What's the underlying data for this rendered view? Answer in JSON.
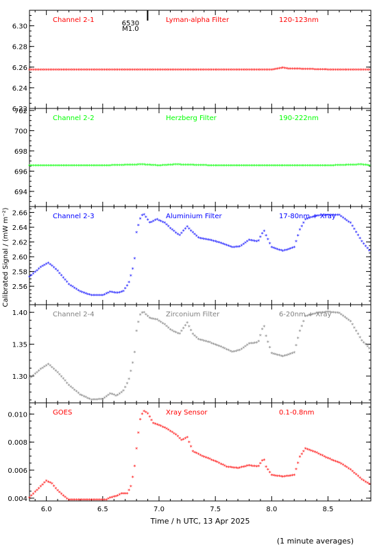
{
  "xaxis": {
    "label": "Time / h UTC, 13 Apr 2025",
    "xlim": [
      5.85,
      8.88
    ],
    "ticks": [
      6.0,
      6.5,
      7.0,
      7.5,
      8.0,
      8.5
    ],
    "tick_labels": [
      "6.0",
      "6.5",
      "7.0",
      "7.5",
      "8.0",
      "8.5"
    ]
  },
  "ylabel": "Calibrated Signal / (mW m⁻²)",
  "footnote": "(1 minute averages)",
  "flare_marker": {
    "x": 6.85,
    "number": "6530",
    "class": "M1.0"
  },
  "chart_data": [
    {
      "type": "scatter",
      "channel": "Channel 2-1",
      "filter": "Lyman-alpha Filter",
      "band": "120-123nm",
      "color": "#ff0000",
      "ylim": [
        6.22,
        6.315
      ],
      "yticks": [
        6.22,
        6.24,
        6.26,
        6.28,
        6.3
      ],
      "ytick_labels": [
        "6.22",
        "6.24",
        "6.26",
        "6.28",
        "6.30"
      ],
      "x": [
        5.85,
        6.0,
        6.5,
        7.0,
        7.5,
        8.0,
        8.05,
        8.1,
        8.15,
        8.5,
        8.88
      ],
      "y": [
        6.257,
        6.257,
        6.257,
        6.257,
        6.257,
        6.257,
        6.258,
        6.259,
        6.258,
        6.257,
        6.257
      ]
    },
    {
      "type": "scatter",
      "channel": "Channel 2-2",
      "filter": "Herzberg Filter",
      "band": "190-222nm",
      "color": "#00ff00",
      "ylim": [
        692.5,
        702.2
      ],
      "yticks": [
        694,
        696,
        698,
        700,
        702
      ],
      "ytick_labels": [
        "694",
        "696",
        "698",
        "700",
        "702"
      ],
      "x": [
        5.85,
        6.5,
        6.85,
        7.0,
        7.15,
        7.5,
        8.0,
        8.5,
        8.8,
        8.88
      ],
      "y": [
        696.5,
        696.5,
        696.6,
        696.5,
        696.6,
        696.5,
        696.5,
        696.5,
        696.6,
        696.5
      ]
    },
    {
      "type": "scatter",
      "channel": "Channel 2-3",
      "filter": "Aluminium Filter",
      "band": "17-80nm + Xray",
      "color": "#0000ff",
      "ylim": [
        2.535,
        2.668
      ],
      "yticks": [
        2.56,
        2.58,
        2.6,
        2.62,
        2.64,
        2.66
      ],
      "ytick_labels": [
        "2.56",
        "2.58",
        "2.60",
        "2.62",
        "2.64",
        "2.66"
      ],
      "x": [
        5.85,
        5.95,
        6.02,
        6.1,
        6.2,
        6.3,
        6.4,
        6.5,
        6.57,
        6.62,
        6.68,
        6.73,
        6.78,
        6.8,
        6.83,
        6.86,
        6.92,
        6.98,
        7.05,
        7.1,
        7.18,
        7.25,
        7.3,
        7.35,
        7.45,
        7.55,
        7.65,
        7.72,
        7.8,
        7.88,
        7.93,
        7.95,
        8.0,
        8.1,
        8.2,
        8.25,
        8.3,
        8.4,
        8.5,
        8.6,
        8.7,
        8.8,
        8.88
      ],
      "y": [
        2.572,
        2.585,
        2.591,
        2.58,
        2.562,
        2.552,
        2.547,
        2.547,
        2.552,
        2.55,
        2.552,
        2.563,
        2.59,
        2.632,
        2.65,
        2.658,
        2.645,
        2.65,
        2.645,
        2.638,
        2.628,
        2.64,
        2.632,
        2.625,
        2.622,
        2.618,
        2.612,
        2.613,
        2.622,
        2.62,
        2.635,
        2.628,
        2.612,
        2.607,
        2.612,
        2.636,
        2.65,
        2.655,
        2.656,
        2.656,
        2.645,
        2.62,
        2.605
      ]
    },
    {
      "type": "scatter",
      "channel": "Channel 2-4",
      "filter": "Zirconium Filter",
      "band": "6-20nm + Xray",
      "color": "#808080",
      "ylim": [
        1.258,
        1.412
      ],
      "yticks": [
        1.3,
        1.35,
        1.4
      ],
      "ytick_labels": [
        "1.30",
        "1.35",
        "1.40"
      ],
      "x": [
        5.85,
        5.95,
        6.02,
        6.1,
        6.2,
        6.3,
        6.4,
        6.5,
        6.57,
        6.62,
        6.68,
        6.73,
        6.78,
        6.8,
        6.83,
        6.86,
        6.92,
        6.98,
        7.05,
        7.1,
        7.18,
        7.25,
        7.3,
        7.35,
        7.45,
        7.55,
        7.65,
        7.72,
        7.8,
        7.88,
        7.93,
        7.95,
        8.0,
        8.1,
        8.2,
        8.25,
        8.3,
        8.4,
        8.5,
        8.6,
        8.7,
        8.8,
        8.88
      ],
      "y": [
        1.295,
        1.31,
        1.318,
        1.305,
        1.285,
        1.27,
        1.262,
        1.263,
        1.272,
        1.268,
        1.275,
        1.292,
        1.33,
        1.37,
        1.395,
        1.4,
        1.39,
        1.388,
        1.38,
        1.372,
        1.365,
        1.383,
        1.365,
        1.357,
        1.352,
        1.345,
        1.337,
        1.34,
        1.35,
        1.352,
        1.38,
        1.362,
        1.335,
        1.33,
        1.336,
        1.37,
        1.393,
        1.398,
        1.4,
        1.398,
        1.385,
        1.355,
        1.34
      ]
    },
    {
      "type": "scatter",
      "channel": "GOES",
      "filter": "Xray Sensor",
      "band": "0.1-0.8nm",
      "color": "#ff0000",
      "ylim": [
        0.0038,
        0.0108
      ],
      "yticks": [
        0.004,
        0.006,
        0.008,
        0.01
      ],
      "ytick_labels": [
        "0.004",
        "0.006",
        "0.008",
        "0.010"
      ],
      "x": [
        5.85,
        5.95,
        6.0,
        6.05,
        6.1,
        6.2,
        6.3,
        6.4,
        6.5,
        6.57,
        6.62,
        6.67,
        6.72,
        6.75,
        6.78,
        6.8,
        6.83,
        6.86,
        6.9,
        6.95,
        7.05,
        7.15,
        7.2,
        7.25,
        7.3,
        7.4,
        7.5,
        7.6,
        7.7,
        7.8,
        7.88,
        7.93,
        7.95,
        8.0,
        8.1,
        8.2,
        8.25,
        8.3,
        8.4,
        8.5,
        8.6,
        8.7,
        8.8,
        8.88
      ],
      "y": [
        0.004,
        0.0048,
        0.0052,
        0.005,
        0.0045,
        0.0038,
        0.0034,
        0.0035,
        0.0037,
        0.004,
        0.0041,
        0.0043,
        0.0043,
        0.0048,
        0.006,
        0.0075,
        0.0095,
        0.0102,
        0.01,
        0.0093,
        0.009,
        0.0085,
        0.0081,
        0.0083,
        0.0073,
        0.0069,
        0.0066,
        0.0062,
        0.0061,
        0.0063,
        0.0062,
        0.0068,
        0.0062,
        0.0056,
        0.0055,
        0.0056,
        0.0069,
        0.0075,
        0.0072,
        0.0068,
        0.0065,
        0.006,
        0.0053,
        0.0049
      ]
    }
  ]
}
